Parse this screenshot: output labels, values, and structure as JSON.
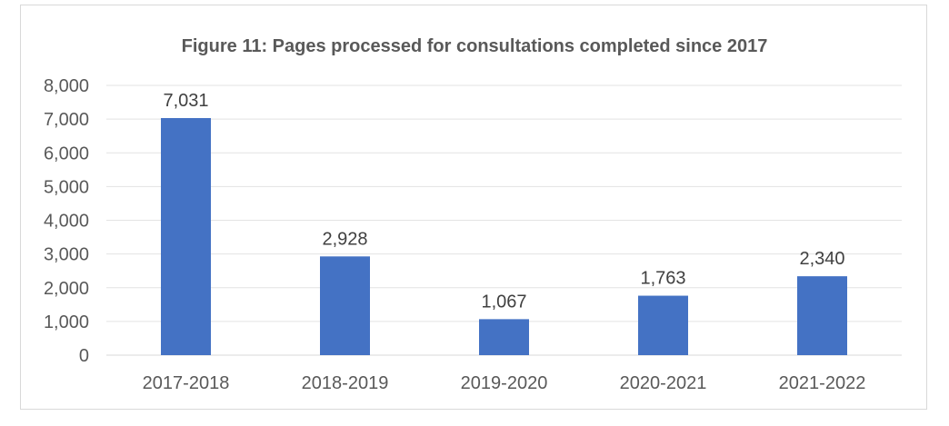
{
  "chart_data": {
    "type": "bar",
    "title": "Figure 11: Pages processed for consultations completed since 2017",
    "categories": [
      "2017-2018",
      "2018-2019",
      "2019-2020",
      "2020-2021",
      "2021-2022"
    ],
    "values": [
      7031,
      2928,
      1067,
      1763,
      2340
    ],
    "data_labels": [
      "7,031",
      "2,928",
      "1,067",
      "1,763",
      "2,340"
    ],
    "ylim": [
      0,
      8000
    ],
    "yticks": [
      "0",
      "1,000",
      "2,000",
      "3,000",
      "4,000",
      "5,000",
      "6,000",
      "7,000",
      "8,000"
    ],
    "xlabel": "",
    "ylabel": "",
    "grid": true,
    "legend": "none",
    "bar_color": "#4472c4"
  }
}
